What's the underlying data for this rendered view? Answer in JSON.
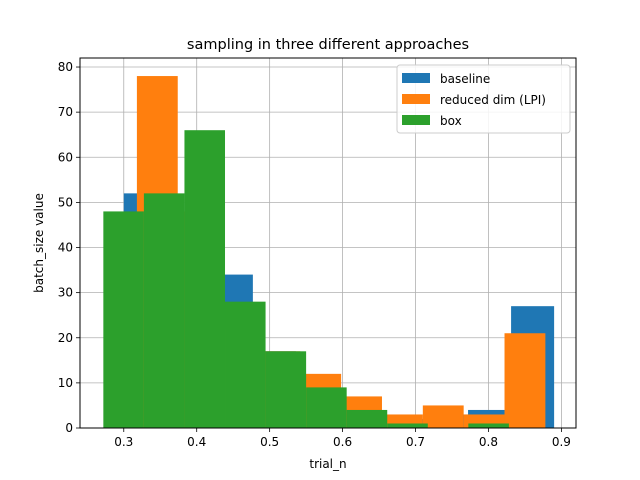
{
  "chart_data": {
    "type": "bar",
    "title": "sampling in three different approaches",
    "xlabel": "trial_n",
    "ylabel": "batch_size value",
    "xlim": [
      0.24,
      0.92
    ],
    "ylim": [
      0,
      82
    ],
    "xticks": [
      0.3,
      0.4,
      0.5,
      0.6,
      0.7,
      0.8,
      0.9
    ],
    "yticks": [
      0,
      10,
      20,
      30,
      40,
      50,
      60,
      70,
      80
    ],
    "grid": true,
    "legend_position": "upper right",
    "series": [
      {
        "name": "baseline",
        "color": "#1f77b4",
        "bins": [
          {
            "x0": 0.3,
            "x1": 0.359,
            "value": 52
          },
          {
            "x0": 0.359,
            "x1": 0.418,
            "value": 36
          },
          {
            "x0": 0.418,
            "x1": 0.477,
            "value": 34
          },
          {
            "x0": 0.477,
            "x1": 0.536,
            "value": 17
          },
          {
            "x0": 0.536,
            "x1": 0.595,
            "value": 11
          },
          {
            "x0": 0.595,
            "x1": 0.654,
            "value": 4
          },
          {
            "x0": 0.654,
            "x1": 0.713,
            "value": 2
          },
          {
            "x0": 0.713,
            "x1": 0.772,
            "value": 3
          },
          {
            "x0": 0.772,
            "x1": 0.831,
            "value": 4
          },
          {
            "x0": 0.831,
            "x1": 0.89,
            "value": 27
          }
        ]
      },
      {
        "name": "reduced dim (LPI)",
        "color": "#ff7f0e",
        "bins": [
          {
            "x0": 0.318,
            "x1": 0.374,
            "value": 78
          },
          {
            "x0": 0.374,
            "x1": 0.43,
            "value": 48
          },
          {
            "x0": 0.43,
            "x1": 0.486,
            "value": 22
          },
          {
            "x0": 0.486,
            "x1": 0.542,
            "value": 17
          },
          {
            "x0": 0.542,
            "x1": 0.598,
            "value": 12
          },
          {
            "x0": 0.598,
            "x1": 0.654,
            "value": 7
          },
          {
            "x0": 0.654,
            "x1": 0.71,
            "value": 3
          },
          {
            "x0": 0.71,
            "x1": 0.766,
            "value": 5
          },
          {
            "x0": 0.766,
            "x1": 0.822,
            "value": 3
          },
          {
            "x0": 0.822,
            "x1": 0.878,
            "value": 21
          }
        ]
      },
      {
        "name": "box",
        "color": "#2ca02c",
        "bins": [
          {
            "x0": 0.272,
            "x1": 0.3276,
            "value": 48
          },
          {
            "x0": 0.3276,
            "x1": 0.3832,
            "value": 52
          },
          {
            "x0": 0.3832,
            "x1": 0.4388,
            "value": 66
          },
          {
            "x0": 0.4388,
            "x1": 0.4944,
            "value": 28
          },
          {
            "x0": 0.4944,
            "x1": 0.55,
            "value": 17
          },
          {
            "x0": 0.55,
            "x1": 0.6056,
            "value": 9
          },
          {
            "x0": 0.6056,
            "x1": 0.6612,
            "value": 4
          },
          {
            "x0": 0.6612,
            "x1": 0.7168,
            "value": 1
          },
          {
            "x0": 0.7168,
            "x1": 0.7724,
            "value": 0
          },
          {
            "x0": 0.7724,
            "x1": 0.828,
            "value": 1
          }
        ]
      }
    ]
  }
}
